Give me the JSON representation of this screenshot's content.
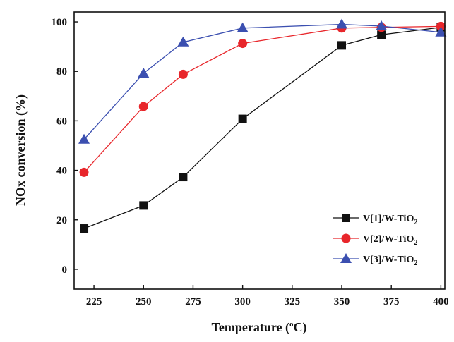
{
  "chart_data": {
    "type": "line",
    "title": "",
    "xlabel": "Temperature (",
    "xlabel_sup": "o",
    "xlabel_unit": "C)",
    "ylabel": "NOx conversion (%)",
    "xlim": [
      215,
      402
    ],
    "ylim": [
      -8,
      104
    ],
    "xticks": [
      225,
      250,
      275,
      300,
      325,
      350,
      375,
      400
    ],
    "yticks": [
      0,
      20,
      40,
      60,
      80,
      100
    ],
    "grid": false,
    "legend_position": "bottom-right",
    "series": [
      {
        "name": "V[1]/W-TiO2",
        "label_main": "V[1]/W-TiO",
        "label_sub": "2",
        "color": "#111111",
        "marker": "square",
        "x": [
          220,
          250,
          270,
          300,
          350,
          370,
          400
        ],
        "values": [
          16.5,
          25.8,
          37.3,
          60.8,
          90.5,
          94.8,
          97.8
        ]
      },
      {
        "name": "V[2]/W-TiO2",
        "label_main": "V[2]/W-TiO",
        "label_sub": "2",
        "color": "#e8262b",
        "marker": "circle",
        "x": [
          220,
          250,
          270,
          300,
          350,
          370,
          400
        ],
        "values": [
          39.2,
          65.8,
          78.8,
          91.3,
          97.5,
          97.8,
          98.2
        ]
      },
      {
        "name": "V[3]/W-TiO2",
        "label_main": "V[3]/W-TiO",
        "label_sub": "2",
        "color": "#3b4fb0",
        "marker": "triangle",
        "x": [
          220,
          250,
          270,
          300,
          350,
          370,
          400
        ],
        "values": [
          52.5,
          79.2,
          91.8,
          97.5,
          99.0,
          98.3,
          95.8
        ]
      }
    ]
  }
}
